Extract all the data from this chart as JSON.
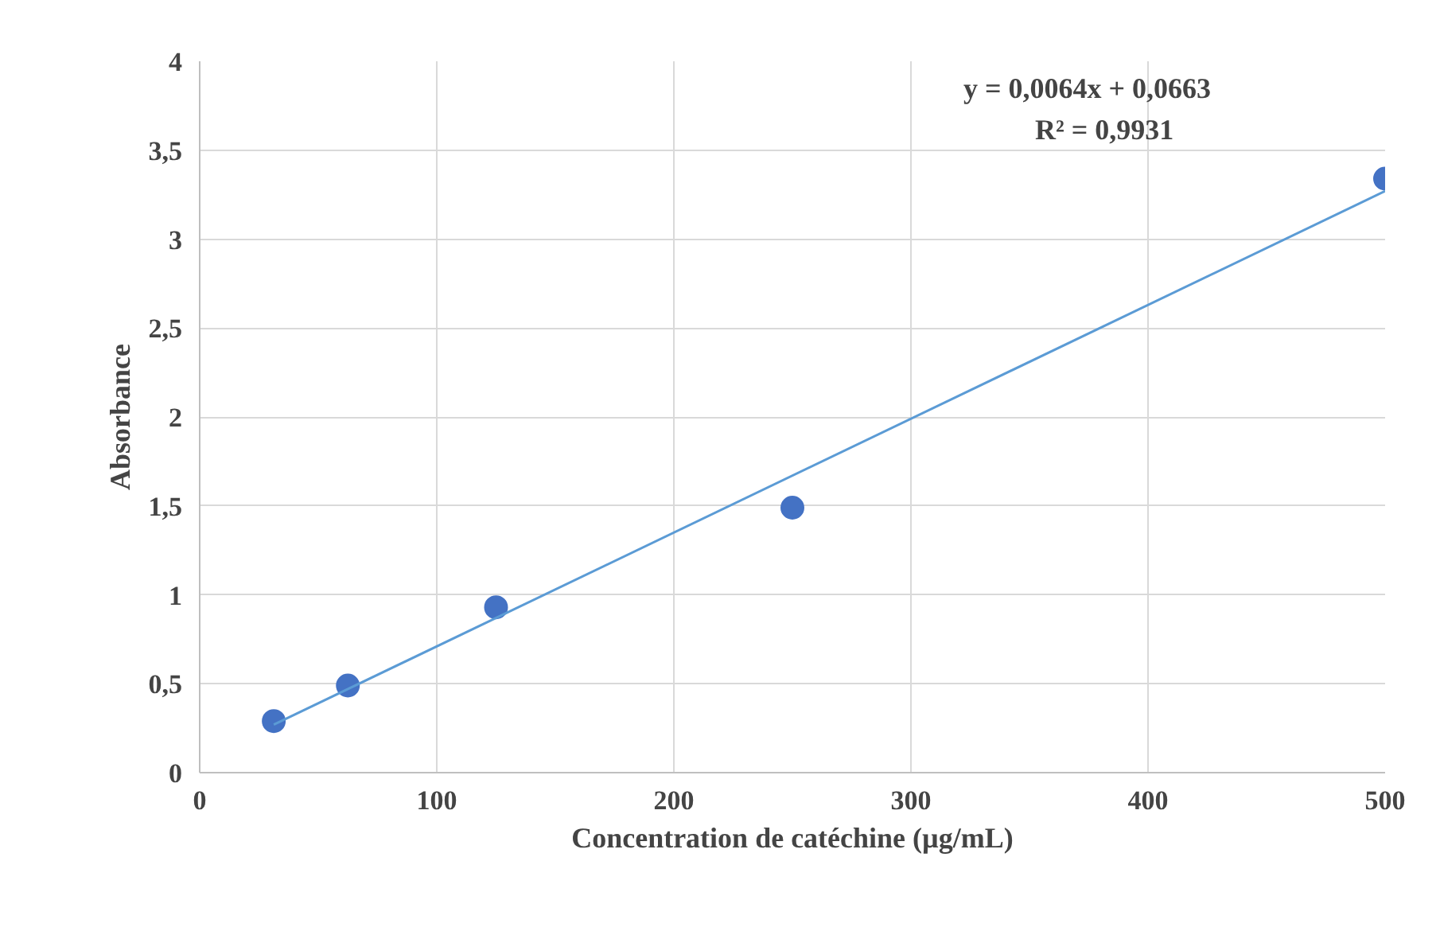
{
  "chart_data": {
    "type": "scatter",
    "xlabel": "Concentration de catéchine (µg/mL)",
    "ylabel": "Absorbance",
    "annotations": [
      "y = 0,0064x + 0,0663",
      "R² = 0,9931"
    ],
    "series": [
      {
        "type": "scatter",
        "color": "#4472c4",
        "marker": "circle",
        "x": [
          31.25,
          62.5,
          125,
          250,
          500
        ],
        "values": [
          0.29,
          0.49,
          0.93,
          1.49,
          3.34
        ]
      },
      {
        "type": "line",
        "color": "#5b9bd5",
        "line_style": "solid",
        "x": [
          31.25,
          500
        ],
        "values": [
          0.27,
          3.27
        ]
      }
    ],
    "xlim": [
      0,
      500
    ],
    "xticks": [
      0,
      100,
      200,
      300,
      400,
      500
    ],
    "ylim": [
      0,
      4
    ],
    "yticks": [
      0,
      {
        "value": 0.5,
        "label": "0,5"
      },
      1,
      {
        "value": 1.5,
        "label": "1,5"
      },
      2,
      {
        "value": 2.5,
        "label": "2,5"
      },
      3,
      {
        "value": 3.5,
        "label": "3,5"
      },
      4
    ],
    "grid": true
  }
}
